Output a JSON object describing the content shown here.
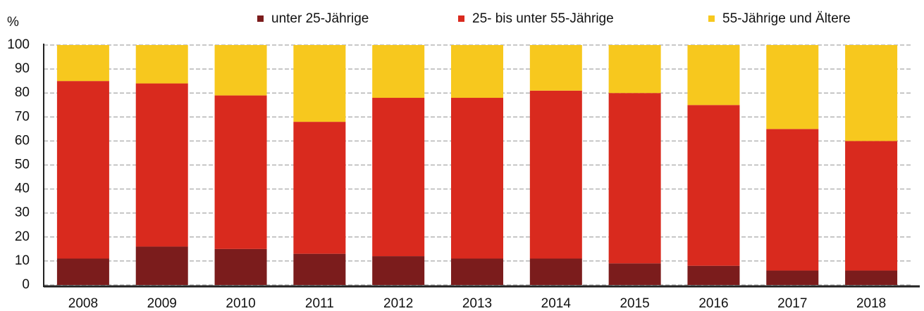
{
  "chart_data": {
    "type": "stacked_bar",
    "y_label": "%",
    "categories": [
      "2008",
      "2009",
      "2010",
      "2011",
      "2012",
      "2013",
      "2014",
      "2015",
      "2016",
      "2017",
      "2018"
    ],
    "series": [
      {
        "name": "unter 25-Jährige",
        "color": "#7b1c1c",
        "values": [
          11,
          16,
          15,
          13,
          12,
          11,
          11,
          9,
          8,
          6,
          6
        ]
      },
      {
        "name": "25- bis unter 55-Jährige",
        "color": "#d92a1e",
        "values": [
          74,
          68,
          64,
          55,
          66,
          67,
          70,
          71,
          67,
          59,
          54
        ]
      },
      {
        "name": "55-Jährige und Ältere",
        "color": "#f7c81e",
        "values": [
          15,
          16,
          21,
          32,
          22,
          22,
          19,
          20,
          25,
          35,
          40
        ]
      }
    ],
    "ylim": [
      0,
      100
    ],
    "yticks": [
      0,
      10,
      20,
      30,
      40,
      50,
      60,
      70,
      80,
      90,
      100
    ],
    "grid": true,
    "legend": "top"
  }
}
